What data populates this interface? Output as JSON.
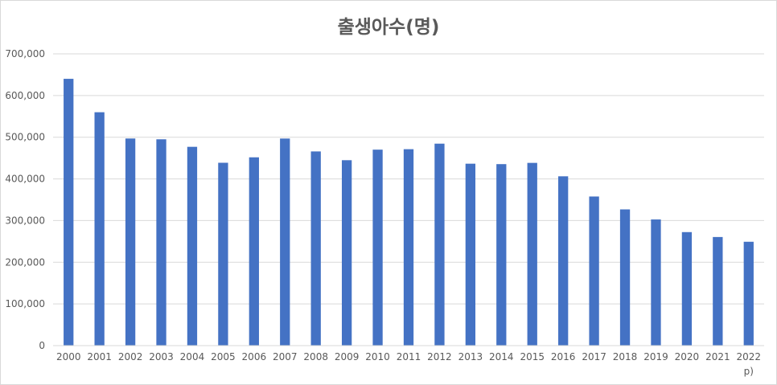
{
  "chart_data": {
    "type": "bar",
    "title": "출생아수(명)",
    "xlabel": "",
    "ylabel": "",
    "categories": [
      "2000",
      "2001",
      "2002",
      "2003",
      "2004",
      "2005",
      "2006",
      "2007",
      "2008",
      "2009",
      "2010",
      "2011",
      "2012",
      "2013",
      "2014",
      "2015",
      "2016",
      "2017",
      "2018",
      "2019",
      "2020",
      "2021",
      "2022"
    ],
    "category_notes": {
      "2022": "p)"
    },
    "values": [
      640089,
      559934,
      496911,
      495036,
      476958,
      438707,
      451759,
      496822,
      465892,
      444849,
      470171,
      471265,
      484550,
      436455,
      435435,
      438420,
      406243,
      357771,
      326822,
      302676,
      272337,
      260562,
      249186
    ],
    "ylim": [
      0,
      700000
    ],
    "yticks": [
      0,
      100000,
      200000,
      300000,
      400000,
      500000,
      600000,
      700000
    ],
    "ytick_labels": [
      "0",
      "100,000",
      "200,000",
      "300,000",
      "400,000",
      "500,000",
      "600,000",
      "700,000"
    ],
    "grid": true,
    "legend": "none",
    "bar_color": "#4472c4",
    "grid_color": "#d9d9d9",
    "text_color": "#595959"
  }
}
